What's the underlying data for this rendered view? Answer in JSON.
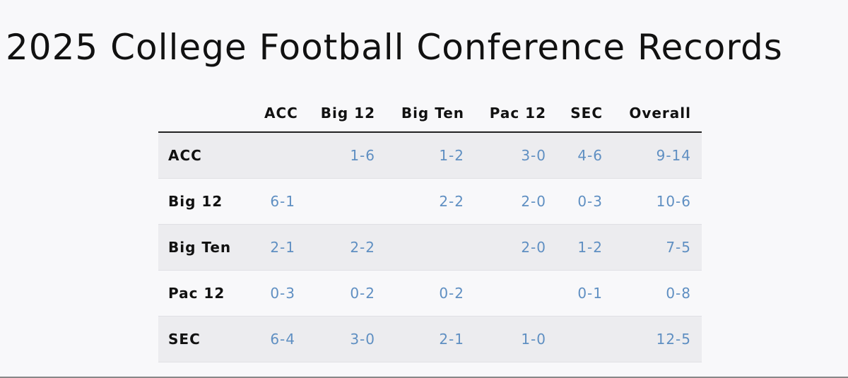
{
  "title": "2025 College Football Conference Records",
  "table": {
    "columns": [
      "ACC",
      "Big 12",
      "Big Ten",
      "Pac 12",
      "SEC",
      "Overall"
    ],
    "rows": [
      {
        "label": "ACC",
        "cells": [
          null,
          "1-6",
          "1-2",
          "3-0",
          "4-6",
          "9-14"
        ]
      },
      {
        "label": "Big 12",
        "cells": [
          "6-1",
          null,
          "2-2",
          "2-0",
          "0-3",
          "10-6"
        ]
      },
      {
        "label": "Big Ten",
        "cells": [
          "2-1",
          "2-2",
          null,
          "2-0",
          "1-2",
          "7-5"
        ]
      },
      {
        "label": "Pac 12",
        "cells": [
          "0-3",
          "0-2",
          "0-2",
          null,
          "0-1",
          "0-8"
        ]
      },
      {
        "label": "SEC",
        "cells": [
          "6-4",
          "3-0",
          "2-1",
          "1-0",
          null,
          "12-5"
        ]
      }
    ]
  }
}
